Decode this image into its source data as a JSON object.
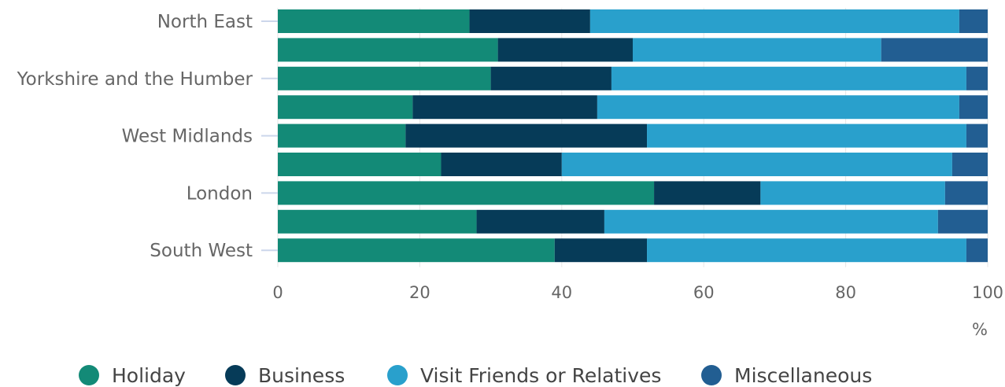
{
  "chart_data": {
    "type": "bar",
    "orientation": "horizontal",
    "stacked": true,
    "categories": [
      "North East",
      "",
      "Yorkshire and the Humber",
      "",
      "West Midlands",
      "",
      "London",
      "",
      "South West"
    ],
    "series": [
      {
        "name": "Holiday",
        "color": "#138a77",
        "values": [
          27,
          31,
          30,
          19,
          18,
          23,
          53,
          28,
          39
        ]
      },
      {
        "name": "Business",
        "color": "#063b58",
        "values": [
          17,
          19,
          17,
          26,
          34,
          17,
          15,
          18,
          13
        ]
      },
      {
        "name": "Visit Friends or Relatives",
        "color": "#29a0cc",
        "values": [
          52,
          35,
          50,
          51,
          45,
          55,
          26,
          47,
          45
        ]
      },
      {
        "name": "Miscellaneous",
        "color": "#225e92",
        "values": [
          4,
          15,
          3,
          4,
          3,
          5,
          6,
          7,
          3
        ]
      }
    ],
    "xlim": [
      0,
      100
    ],
    "xticks": [
      "0",
      "20",
      "40",
      "60",
      "80",
      "100"
    ],
    "xunit": "%",
    "grid": true,
    "legend_position": "bottom"
  }
}
